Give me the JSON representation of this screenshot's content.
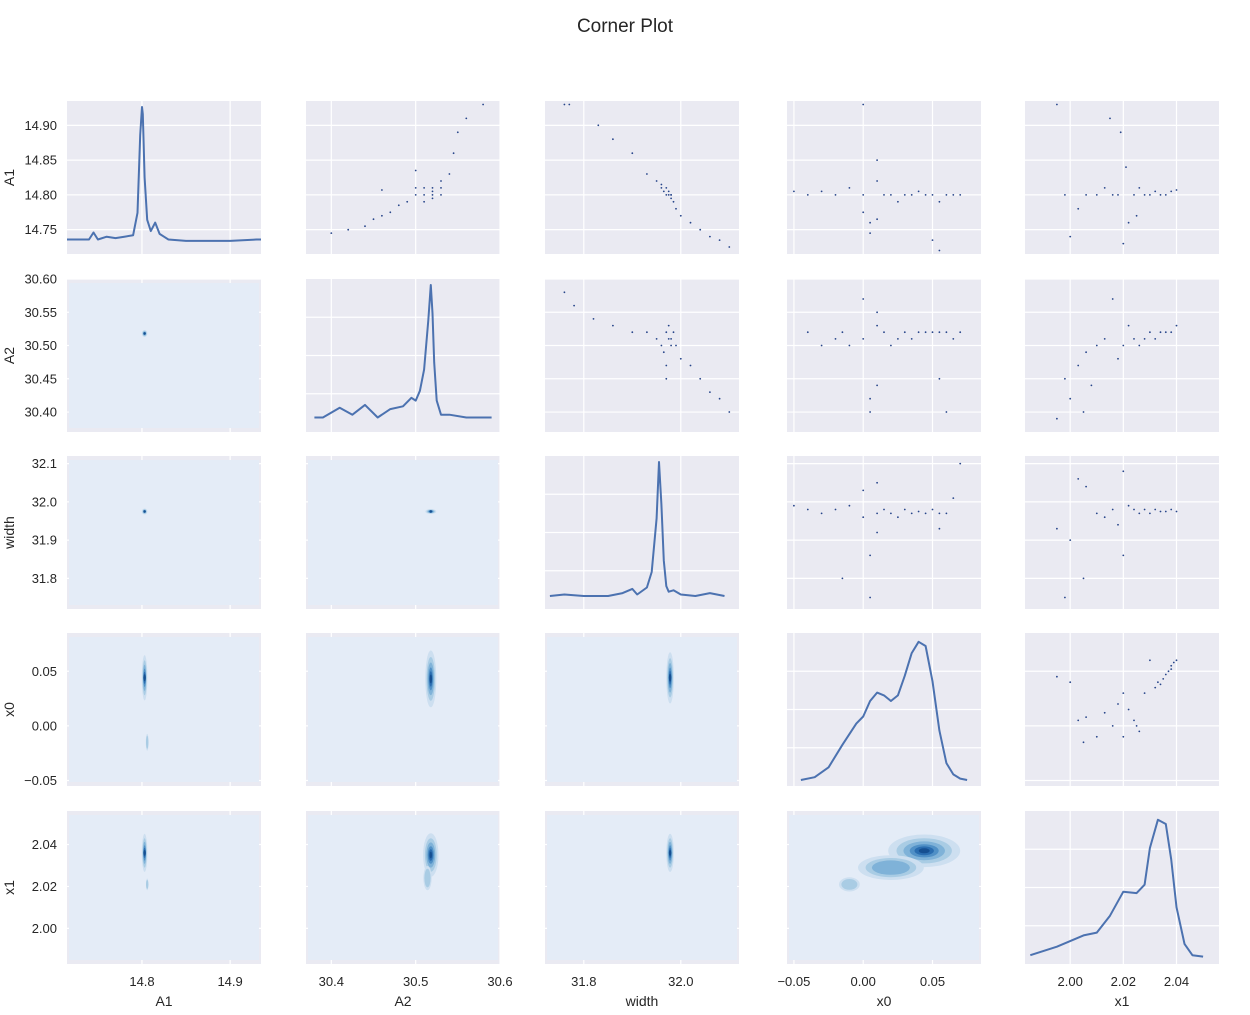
{
  "chart_data": {
    "type": "corner",
    "title": "Corner Plot",
    "variables": [
      "A1",
      "A2",
      "width",
      "x0",
      "x1"
    ],
    "axes": {
      "A1": {
        "label": "A1",
        "range": [
          14.715,
          14.935
        ],
        "ticks": [
          14.75,
          14.8,
          14.85,
          14.9
        ],
        "tick_labels": [
          "14.75",
          "14.80",
          "14.85",
          "14.90"
        ],
        "x_ticks": [
          14.8,
          14.9
        ],
        "x_tick_labels": [
          "14.8",
          "14.9"
        ]
      },
      "A2": {
        "label": "A2",
        "range": [
          30.37,
          30.6
        ],
        "ticks": [
          30.4,
          30.45,
          30.5,
          30.55,
          30.6
        ],
        "tick_labels": [
          "30.40",
          "30.45",
          "30.50",
          "30.55",
          "30.60"
        ],
        "x_ticks": [
          30.4,
          30.5,
          30.6
        ],
        "x_tick_labels": [
          "30.4",
          "30.5",
          "30.6"
        ]
      },
      "width": {
        "label": "width",
        "range": [
          31.72,
          32.12
        ],
        "ticks": [
          31.8,
          31.9,
          32.0,
          32.1
        ],
        "tick_labels": [
          "31.8",
          "31.9",
          "32.0",
          "32.1"
        ],
        "x_ticks": [
          31.8,
          32.0
        ],
        "x_tick_labels": [
          "31.8",
          "32.0"
        ]
      },
      "x0": {
        "label": "x0",
        "range": [
          -0.055,
          0.085
        ],
        "ticks": [
          -0.05,
          0.0,
          0.05
        ],
        "tick_labels": [
          "−0.05",
          "0.00",
          "0.05"
        ],
        "x_ticks": [
          -0.05,
          0.0,
          0.05
        ],
        "x_tick_labels": [
          "−0.05",
          "0.00",
          "0.05"
        ]
      },
      "x1": {
        "label": "x1",
        "range": [
          1.983,
          2.056
        ],
        "ticks": [
          2.0,
          2.02,
          2.04
        ],
        "tick_labels": [
          "2.00",
          "2.02",
          "2.04"
        ],
        "x_ticks": [
          2.0,
          2.02,
          2.04
        ],
        "x_tick_labels": [
          "2.00",
          "2.02",
          "2.04"
        ]
      }
    },
    "diagonal_kde": {
      "A1": {
        "x": [
          14.715,
          14.74,
          14.745,
          14.75,
          14.76,
          14.77,
          14.78,
          14.79,
          14.795,
          14.798,
          14.8,
          14.801,
          14.803,
          14.806,
          14.81,
          14.815,
          14.82,
          14.825,
          14.83,
          14.85,
          14.9,
          14.93,
          14.935
        ],
        "y": [
          0.06,
          0.06,
          0.11,
          0.06,
          0.08,
          0.07,
          0.08,
          0.09,
          0.25,
          0.8,
          1.0,
          0.95,
          0.5,
          0.2,
          0.12,
          0.18,
          0.1,
          0.08,
          0.06,
          0.05,
          0.05,
          0.06,
          0.06
        ]
      },
      "A2": {
        "x": [
          30.38,
          30.39,
          30.41,
          30.425,
          30.44,
          30.455,
          30.47,
          30.485,
          30.495,
          30.5,
          30.505,
          30.51,
          30.515,
          30.518,
          30.52,
          30.522,
          30.525,
          30.53,
          30.54,
          30.56,
          30.59
        ],
        "y": [
          0.06,
          0.06,
          0.13,
          0.08,
          0.15,
          0.06,
          0.12,
          0.14,
          0.2,
          0.18,
          0.25,
          0.4,
          0.75,
          1.0,
          0.8,
          0.45,
          0.18,
          0.08,
          0.08,
          0.06,
          0.06
        ]
      },
      "width": {
        "x": [
          31.73,
          31.76,
          31.8,
          31.85,
          31.88,
          31.9,
          31.91,
          31.93,
          31.94,
          31.95,
          31.955,
          31.96,
          31.965,
          31.97,
          31.975,
          31.985,
          32.0,
          32.03,
          32.06,
          32.09
        ],
        "y": [
          0.05,
          0.06,
          0.05,
          0.05,
          0.07,
          0.1,
          0.06,
          0.11,
          0.22,
          0.6,
          1.0,
          0.7,
          0.3,
          0.12,
          0.08,
          0.09,
          0.06,
          0.05,
          0.07,
          0.05
        ]
      },
      "x0": {
        "x": [
          -0.045,
          -0.035,
          -0.025,
          -0.015,
          -0.005,
          0.0,
          0.005,
          0.01,
          0.015,
          0.02,
          0.025,
          0.03,
          0.035,
          0.04,
          0.045,
          0.05,
          0.055,
          0.06,
          0.065,
          0.07,
          0.075
        ],
        "y": [
          0.0,
          0.02,
          0.09,
          0.25,
          0.4,
          0.45,
          0.56,
          0.62,
          0.6,
          0.56,
          0.6,
          0.74,
          0.9,
          0.98,
          0.95,
          0.7,
          0.35,
          0.12,
          0.04,
          0.01,
          0.0
        ]
      },
      "x1": {
        "x": [
          1.985,
          1.995,
          2.0,
          2.005,
          2.01,
          2.015,
          2.02,
          2.025,
          2.028,
          2.03,
          2.033,
          2.036,
          2.038,
          2.04,
          2.043,
          2.046,
          2.05
        ],
        "y": [
          0.02,
          0.08,
          0.12,
          0.16,
          0.18,
          0.3,
          0.47,
          0.46,
          0.52,
          0.78,
          0.98,
          0.95,
          0.7,
          0.36,
          0.1,
          0.02,
          0.01
        ]
      }
    },
    "kde2d_modes": [
      {
        "x_var": "A1",
        "y_var": "A2",
        "cx": 14.803,
        "cy": 30.518,
        "sx": 0.0012,
        "sy": 0.002,
        "w": 1.0
      },
      {
        "x_var": "A1",
        "y_var": "width",
        "cx": 14.803,
        "cy": 31.975,
        "sx": 0.0012,
        "sy": 0.003,
        "w": 1.0
      },
      {
        "x_var": "A2",
        "y_var": "width",
        "cx": 30.518,
        "cy": 31.975,
        "sx": 0.0025,
        "sy": 0.0025,
        "w": 1.0
      },
      {
        "x_var": "A1",
        "y_var": "x0",
        "cx": 14.803,
        "cy": 0.044,
        "sx": 0.0012,
        "sy": 0.008,
        "w": 1.0
      },
      {
        "x_var": "A1",
        "y_var": "x0",
        "cx": 14.806,
        "cy": -0.015,
        "sx": 0.0008,
        "sy": 0.004,
        "w": 0.35
      },
      {
        "x_var": "A2",
        "y_var": "x0",
        "cx": 30.518,
        "cy": 0.043,
        "sx": 0.0025,
        "sy": 0.01,
        "w": 1.0
      },
      {
        "x_var": "width",
        "y_var": "x0",
        "cx": 31.978,
        "cy": 0.044,
        "sx": 0.003,
        "sy": 0.009,
        "w": 1.0
      },
      {
        "x_var": "A1",
        "y_var": "x1",
        "cx": 14.803,
        "cy": 2.036,
        "sx": 0.0012,
        "sy": 0.0035,
        "w": 1.0
      },
      {
        "x_var": "A1",
        "y_var": "x1",
        "cx": 14.806,
        "cy": 2.021,
        "sx": 0.0007,
        "sy": 0.0015,
        "w": 0.3
      },
      {
        "x_var": "A2",
        "y_var": "x1",
        "cx": 30.518,
        "cy": 2.035,
        "sx": 0.0035,
        "sy": 0.004,
        "w": 1.0
      },
      {
        "x_var": "A2",
        "y_var": "x1",
        "cx": 30.514,
        "cy": 2.024,
        "sx": 0.0025,
        "sy": 0.003,
        "w": 0.35
      },
      {
        "x_var": "width",
        "y_var": "x1",
        "cx": 31.978,
        "cy": 2.036,
        "sx": 0.003,
        "sy": 0.0035,
        "w": 1.0
      },
      {
        "x_var": "x0",
        "y_var": "x1",
        "cx": 0.044,
        "cy": 2.037,
        "sx": 0.01,
        "sy": 0.003,
        "w": 1.0
      },
      {
        "x_var": "x0",
        "y_var": "x1",
        "cx": 0.02,
        "cy": 2.029,
        "sx": 0.012,
        "sy": 0.003,
        "w": 0.4
      },
      {
        "x_var": "x0",
        "y_var": "x1",
        "cx": -0.01,
        "cy": 2.021,
        "sx": 0.004,
        "sy": 0.0018,
        "w": 0.3
      }
    ],
    "scatter_upper": [
      {
        "x_var": "A2",
        "y_var": "A1",
        "x": [
          30.4,
          30.42,
          30.44,
          30.45,
          30.46,
          30.47,
          30.48,
          30.49,
          30.5,
          30.5,
          30.51,
          30.51,
          30.52,
          30.52,
          30.52,
          30.53,
          30.53,
          30.53,
          30.54,
          30.545,
          30.55,
          30.56,
          30.58,
          30.46,
          30.5,
          30.51,
          30.52
        ],
        "y": [
          14.745,
          14.75,
          14.755,
          14.765,
          14.77,
          14.775,
          14.785,
          14.79,
          14.8,
          14.81,
          14.8,
          14.81,
          14.8,
          14.805,
          14.81,
          14.8,
          14.81,
          14.82,
          14.83,
          14.86,
          14.89,
          14.91,
          14.93,
          14.807,
          14.835,
          14.79,
          14.795
        ]
      },
      {
        "x_var": "width",
        "y_var": "A1",
        "x": [
          31.76,
          31.77,
          31.83,
          31.86,
          31.9,
          31.93,
          31.95,
          31.96,
          31.965,
          31.97,
          31.975,
          31.975,
          31.98,
          31.98,
          31.985,
          31.99,
          32.0,
          32.02,
          32.04,
          32.06,
          32.08,
          32.1,
          31.97,
          31.96,
          31.98
        ],
        "y": [
          14.93,
          14.93,
          14.9,
          14.88,
          14.86,
          14.83,
          14.82,
          14.81,
          14.805,
          14.8,
          14.805,
          14.8,
          14.8,
          14.795,
          14.79,
          14.78,
          14.77,
          14.76,
          14.75,
          14.74,
          14.735,
          14.725,
          14.81,
          14.815,
          14.8
        ]
      },
      {
        "x_var": "x0",
        "y_var": "A1",
        "x": [
          -0.05,
          -0.04,
          -0.03,
          -0.02,
          -0.01,
          0.0,
          0.0,
          0.005,
          0.01,
          0.01,
          0.015,
          0.02,
          0.025,
          0.03,
          0.035,
          0.04,
          0.045,
          0.05,
          0.055,
          0.06,
          0.065,
          0.07,
          0.0,
          0.005,
          0.01,
          0.05,
          0.055
        ],
        "y": [
          14.805,
          14.8,
          14.805,
          14.8,
          14.81,
          14.93,
          14.8,
          14.76,
          14.82,
          14.85,
          14.8,
          14.8,
          14.79,
          14.8,
          14.8,
          14.805,
          14.8,
          14.8,
          14.79,
          14.8,
          14.8,
          14.8,
          14.775,
          14.745,
          14.765,
          14.735,
          14.72
        ]
      },
      {
        "x_var": "x1",
        "y_var": "A1",
        "x": [
          1.995,
          1.998,
          2.0,
          2.003,
          2.006,
          2.01,
          2.013,
          2.016,
          2.018,
          2.02,
          2.022,
          2.024,
          2.026,
          2.028,
          2.03,
          2.032,
          2.034,
          2.036,
          2.038,
          2.04,
          2.019,
          2.021,
          2.025,
          2.015
        ],
        "y": [
          14.93,
          14.8,
          14.74,
          14.78,
          14.8,
          14.8,
          14.81,
          14.8,
          14.8,
          14.73,
          14.76,
          14.8,
          14.81,
          14.8,
          14.8,
          14.805,
          14.8,
          14.8,
          14.805,
          14.807,
          14.89,
          14.84,
          14.77,
          14.91
        ]
      },
      {
        "x_var": "width",
        "y_var": "A2",
        "x": [
          31.76,
          31.78,
          31.82,
          31.86,
          31.9,
          31.93,
          31.95,
          31.96,
          31.965,
          31.97,
          31.975,
          31.975,
          31.98,
          31.98,
          31.985,
          31.99,
          32.0,
          32.02,
          32.04,
          32.06,
          32.08,
          32.1,
          31.97,
          31.97
        ],
        "y": [
          30.58,
          30.56,
          30.54,
          30.53,
          30.52,
          30.52,
          30.51,
          30.5,
          30.49,
          30.52,
          30.51,
          30.53,
          30.5,
          30.51,
          30.52,
          30.5,
          30.48,
          30.47,
          30.45,
          30.43,
          30.42,
          30.4,
          30.47,
          30.45
        ]
      },
      {
        "x_var": "x0",
        "y_var": "A2",
        "x": [
          -0.04,
          -0.03,
          -0.02,
          -0.015,
          -0.01,
          0.0,
          0.0,
          0.005,
          0.01,
          0.01,
          0.015,
          0.02,
          0.025,
          0.03,
          0.035,
          0.04,
          0.045,
          0.05,
          0.055,
          0.06,
          0.065,
          0.07,
          0.005,
          0.01,
          0.055,
          0.06
        ],
        "y": [
          30.52,
          30.5,
          30.51,
          30.52,
          30.5,
          30.57,
          30.51,
          30.4,
          30.55,
          30.53,
          30.52,
          30.5,
          30.51,
          30.52,
          30.51,
          30.52,
          30.52,
          30.52,
          30.52,
          30.52,
          30.51,
          30.52,
          30.42,
          30.44,
          30.45,
          30.4
        ]
      },
      {
        "x_var": "x1",
        "y_var": "A2",
        "x": [
          1.995,
          1.998,
          2.0,
          2.003,
          2.006,
          2.01,
          2.013,
          2.016,
          2.018,
          2.02,
          2.022,
          2.024,
          2.026,
          2.028,
          2.03,
          2.032,
          2.034,
          2.036,
          2.038,
          2.04,
          2.005,
          2.008
        ],
        "y": [
          30.39,
          30.45,
          30.42,
          30.47,
          30.49,
          30.5,
          30.51,
          30.57,
          30.48,
          30.5,
          30.53,
          30.51,
          30.5,
          30.51,
          30.52,
          30.51,
          30.52,
          30.52,
          30.52,
          30.53,
          30.4,
          30.44
        ]
      },
      {
        "x_var": "x0",
        "y_var": "width",
        "x": [
          -0.05,
          -0.04,
          -0.03,
          -0.02,
          -0.01,
          0.0,
          0.0,
          0.005,
          0.01,
          0.01,
          0.015,
          0.02,
          0.025,
          0.03,
          0.035,
          0.04,
          0.045,
          0.05,
          0.055,
          0.06,
          0.065,
          0.07,
          -0.015,
          0.005,
          0.01,
          0.055
        ],
        "y": [
          31.99,
          31.98,
          31.97,
          31.98,
          31.99,
          32.03,
          31.96,
          31.75,
          31.97,
          32.05,
          31.98,
          31.97,
          31.96,
          31.98,
          31.97,
          31.975,
          31.97,
          31.98,
          31.97,
          31.97,
          32.01,
          32.1,
          31.8,
          31.86,
          31.92,
          31.93
        ]
      },
      {
        "x_var": "x1",
        "y_var": "width",
        "x": [
          1.995,
          1.998,
          2.0,
          2.003,
          2.006,
          2.01,
          2.013,
          2.016,
          2.018,
          2.02,
          2.022,
          2.024,
          2.026,
          2.028,
          2.03,
          2.032,
          2.034,
          2.036,
          2.038,
          2.04,
          2.005,
          2.02
        ],
        "y": [
          31.93,
          31.75,
          31.9,
          32.06,
          32.04,
          31.97,
          31.96,
          31.98,
          31.94,
          32.08,
          31.99,
          31.98,
          31.97,
          31.98,
          31.97,
          31.98,
          31.975,
          31.975,
          31.98,
          31.975,
          31.8,
          31.86
        ]
      },
      {
        "x_var": "x1",
        "y_var": "x0",
        "x": [
          1.995,
          2.0,
          2.003,
          2.006,
          2.01,
          2.013,
          2.016,
          2.018,
          2.02,
          2.022,
          2.024,
          2.026,
          2.028,
          2.03,
          2.032,
          2.033,
          2.034,
          2.035,
          2.036,
          2.037,
          2.038,
          2.038,
          2.039,
          2.04,
          2.005,
          2.02,
          2.025
        ],
        "y": [
          0.045,
          0.04,
          0.005,
          0.008,
          -0.01,
          0.012,
          0.0,
          0.02,
          0.03,
          0.015,
          0.005,
          -0.005,
          0.03,
          0.06,
          0.035,
          0.04,
          0.038,
          0.043,
          0.047,
          0.05,
          0.052,
          0.055,
          0.058,
          0.06,
          -0.015,
          -0.01,
          0.0
        ]
      }
    ]
  }
}
